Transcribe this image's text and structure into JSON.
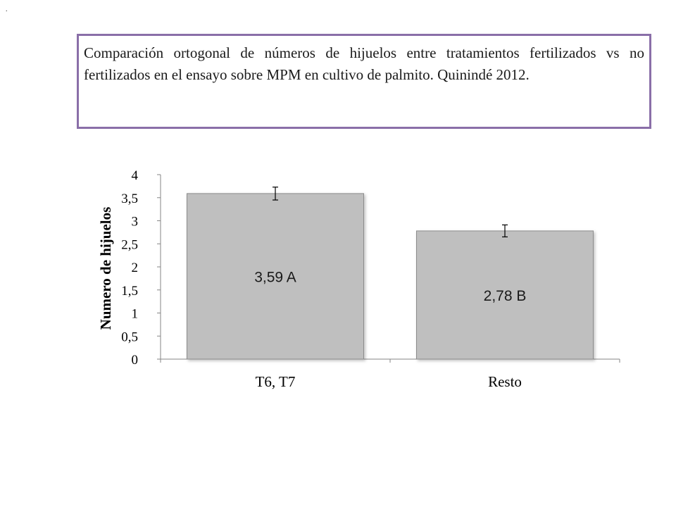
{
  "corner_mark": ".",
  "caption": "Comparación ortogonal de números de hijuelos entre tratamientos fertilizados vs no fertilizados en el ensayo sobre MPM en cultivo de palmito. Quinindé 2012.",
  "colors": {
    "border": "#8a6fa8",
    "bar_fill": "#bfbfbf",
    "bar_stroke": "#8c8c8c",
    "axis": "#868686"
  },
  "chart_data": {
    "type": "bar",
    "categories": [
      "T6, T7",
      "Resto"
    ],
    "values": [
      3.59,
      2.78
    ],
    "error": [
      0.14,
      0.13
    ],
    "data_labels": [
      "3,59 A",
      "2,78 B"
    ],
    "title": "",
    "xlabel": "",
    "ylabel": "Numero de hijuelos",
    "ylim": [
      0,
      4
    ],
    "yticks": [
      0,
      0.5,
      1,
      1.5,
      2,
      2.5,
      3,
      3.5,
      4
    ],
    "ytick_labels": [
      "0",
      "0,5",
      "1",
      "1,5",
      "2",
      "2,5",
      "3",
      "3,5",
      "4"
    ],
    "grid": false,
    "legend": "none"
  }
}
